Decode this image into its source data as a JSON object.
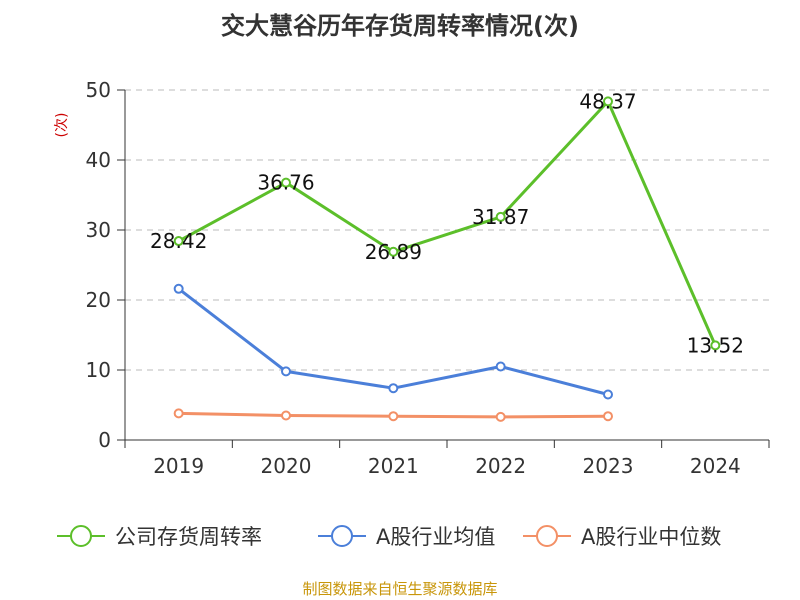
{
  "chart_data": {
    "type": "line",
    "title": "交大慧谷历年存货周转率情况(次)",
    "ylabel": "(次)",
    "xlabel": "",
    "categories": [
      "2019",
      "2020",
      "2021",
      "2022",
      "2023",
      "2024"
    ],
    "ylim": [
      0,
      50
    ],
    "yticks": [
      0,
      10,
      20,
      30,
      40,
      50
    ],
    "grid": true,
    "legend_position": "bottom",
    "series": [
      {
        "name": "公司存货周转率",
        "color": "#5cbf2a",
        "values": [
          28.42,
          36.76,
          26.89,
          31.87,
          48.37,
          13.52
        ],
        "labels": [
          "28.42",
          "36.76",
          "26.89",
          "31.87",
          "48.37",
          "13.52"
        ]
      },
      {
        "name": "A股行业均值",
        "color": "#4b7fd9",
        "values": [
          21.6,
          9.8,
          7.4,
          10.5,
          6.5,
          null
        ]
      },
      {
        "name": "A股行业中位数",
        "color": "#f39066",
        "values": [
          3.8,
          3.5,
          3.4,
          3.3,
          3.4,
          null
        ]
      }
    ]
  },
  "source_text": "制图数据来自恒生聚源数据库"
}
